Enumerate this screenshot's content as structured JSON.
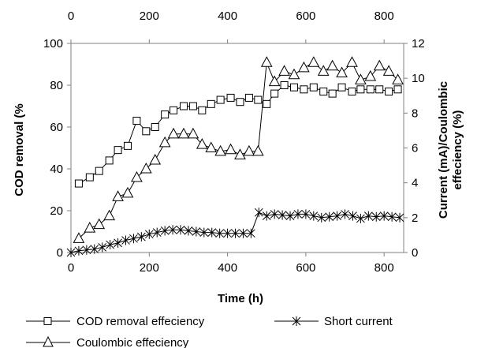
{
  "chart_data": {
    "type": "line",
    "title": "",
    "xlabel": "Time  (h)",
    "ylabel_left": "COD removal (%",
    "ylabel_right_line1": "Current (mA)/Coulombic",
    "ylabel_right_line2": "effeciency (%)",
    "xlim": [
      0,
      850
    ],
    "ylim_left": [
      0,
      100
    ],
    "ylim_right": [
      0,
      12
    ],
    "x_ticks": [
      0,
      200,
      400,
      600,
      800
    ],
    "x_tick_labels": [
      "0",
      "200",
      "400",
      "600",
      "800"
    ],
    "x_top_tick_labels": [
      "0",
      "200",
      "400",
      "600",
      "800"
    ],
    "y_left_ticks": [
      0,
      20,
      40,
      60,
      80,
      100
    ],
    "y_left_tick_labels": [
      "0",
      "20",
      "40",
      "60",
      "80",
      "100"
    ],
    "y_right_ticks": [
      0,
      2,
      4,
      6,
      8,
      10,
      12
    ],
    "y_right_tick_labels": [
      "0",
      "2",
      "4",
      "6",
      "8",
      "10",
      "12"
    ],
    "grid": false,
    "legend_position": "bottom",
    "series": [
      {
        "name": "COD removal effeciency",
        "marker": "square",
        "axis": "left",
        "x": [
          20,
          48,
          72,
          98,
          120,
          145,
          168,
          192,
          215,
          240,
          262,
          288,
          312,
          335,
          358,
          382,
          408,
          432,
          455,
          478,
          500,
          520,
          545,
          570,
          595,
          620,
          645,
          668,
          692,
          718,
          740,
          765,
          788,
          812,
          835
        ],
        "y": [
          33,
          36,
          39,
          44,
          49,
          51,
          63,
          58,
          60,
          66,
          68,
          70,
          70,
          68,
          71,
          73,
          74,
          72,
          74,
          73,
          71,
          76,
          80,
          79,
          78,
          79,
          77,
          76,
          79,
          77,
          78,
          78,
          78,
          77,
          78
        ]
      },
      {
        "name": "Coulombic effeciency",
        "marker": "triangle",
        "axis": "right",
        "x": [
          20,
          48,
          72,
          98,
          120,
          145,
          168,
          192,
          215,
          240,
          262,
          288,
          312,
          335,
          358,
          382,
          408,
          432,
          455,
          478,
          500,
          520,
          545,
          570,
          595,
          620,
          645,
          668,
          692,
          718,
          740,
          765,
          788,
          812,
          835
        ],
        "y": [
          0.8,
          1.4,
          1.6,
          2.1,
          3.2,
          3.4,
          4.3,
          4.8,
          5.3,
          6.3,
          6.8,
          6.8,
          6.8,
          6.2,
          6.0,
          5.8,
          5.9,
          5.6,
          5.8,
          5.8,
          10.9,
          9.8,
          10.4,
          10.2,
          10.6,
          10.9,
          10.4,
          10.7,
          10.3,
          10.9,
          9.9,
          10.1,
          10.7,
          10.4,
          9.9
        ]
      },
      {
        "name": "Short current",
        "marker": "asterisk",
        "axis": "right",
        "x": [
          0,
          20,
          40,
          60,
          80,
          100,
          120,
          140,
          160,
          180,
          200,
          220,
          240,
          260,
          280,
          300,
          320,
          340,
          360,
          380,
          400,
          420,
          440,
          460,
          480,
          500,
          520,
          540,
          560,
          580,
          600,
          620,
          640,
          660,
          680,
          700,
          720,
          740,
          760,
          780,
          800,
          820,
          840
        ],
        "y": [
          0.0,
          0.1,
          0.15,
          0.2,
          0.3,
          0.45,
          0.55,
          0.7,
          0.8,
          0.9,
          1.05,
          1.15,
          1.25,
          1.3,
          1.3,
          1.25,
          1.2,
          1.15,
          1.15,
          1.1,
          1.1,
          1.1,
          1.1,
          1.1,
          2.3,
          2.1,
          2.2,
          2.15,
          2.1,
          2.2,
          2.2,
          2.1,
          2.0,
          2.05,
          2.1,
          2.2,
          2.1,
          1.95,
          2.1,
          2.05,
          2.1,
          2.05,
          2.0
        ]
      }
    ]
  },
  "legend": {
    "items": [
      {
        "label": "COD removal effeciency"
      },
      {
        "label": "Short current"
      },
      {
        "label": "Coulombic effeciency"
      }
    ]
  }
}
